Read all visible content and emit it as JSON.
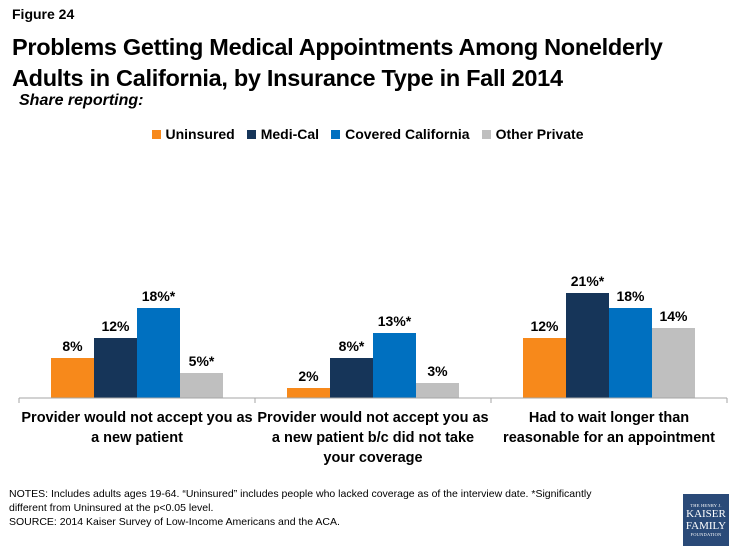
{
  "figure_label": "Figure 24",
  "title": "Problems Getting Medical Appointments Among Nonelderly Adults in California, by Insurance Type in Fall 2014",
  "subtitle": "Share reporting:",
  "notes": [
    "NOTES: Includes adults ages 19-64. “Uninsured” includes people who lacked coverage as of the interview date. *Significantly",
    "different from Uninsured at the p<0.05 level.",
    "SOURCE: 2014 Kaiser Survey of Low-Income Americans and the ACA."
  ],
  "logo": {
    "line1": "THE HENRY J.",
    "line2": "KAISER",
    "line3": "FAMILY",
    "line4": "FOUNDATION"
  },
  "chart_data": {
    "type": "bar",
    "title": "Problems Getting Medical Appointments Among Nonelderly Adults in California, by Insurance Type in Fall 2014",
    "subtitle": "Share reporting:",
    "xlabel": "",
    "ylabel": "",
    "ylim": [
      0,
      21
    ],
    "grid": false,
    "legend_position": "top-center",
    "categories": [
      [
        "Provider would not accept you as",
        "a new patient"
      ],
      [
        "Provider would not accept you as",
        "a new patient b/c did not take",
        "your coverage"
      ],
      [
        "Had to wait longer than",
        "reasonable for an appointment"
      ]
    ],
    "series": [
      {
        "name": "Uninsured",
        "color": "#F7891B",
        "values": [
          8,
          2,
          12
        ],
        "labels": [
          "8%",
          "2%",
          "12%"
        ]
      },
      {
        "name": "Medi-Cal",
        "color": "#163559",
        "values": [
          12,
          8,
          21
        ],
        "labels": [
          "12%",
          "8%*",
          "21%*"
        ]
      },
      {
        "name": "Covered California",
        "color": "#0070C0",
        "values": [
          18,
          13,
          18
        ],
        "labels": [
          "18%*",
          "13%*",
          "18%"
        ]
      },
      {
        "name": "Other Private",
        "color": "#BFBFBF",
        "values": [
          5,
          3,
          14
        ],
        "labels": [
          "5%*",
          "3%",
          "14%"
        ]
      }
    ]
  }
}
